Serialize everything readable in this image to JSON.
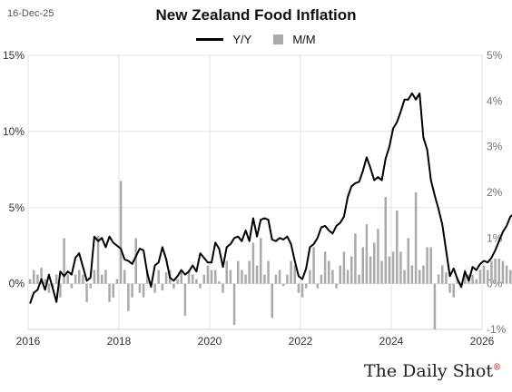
{
  "header": {
    "date": "16-Dec-25",
    "title": "New Zealand Food Inflation"
  },
  "legend": {
    "yy_label": "Y/Y",
    "mm_label": "M/M"
  },
  "brand": "The Daily Shot",
  "brand_mark": "®",
  "chart_data": {
    "type": "line",
    "title": "New Zealand Food Inflation",
    "x_ticks": [
      "2016",
      "2018",
      "2020",
      "2022",
      "2024",
      "2026"
    ],
    "y_left_ticks": [
      "15%",
      "10%",
      "5%",
      "0%"
    ],
    "y_right_ticks": [
      "5%",
      "4%",
      "3%",
      "2%",
      "1%",
      "0%",
      "-1%"
    ],
    "ylim_left": [
      -3,
      15
    ],
    "ylim_right": [
      -1,
      5
    ],
    "xlim": [
      2016.0,
      2026.0
    ],
    "grid": true,
    "legend_position": "top",
    "colors": {
      "line": "#000000",
      "bars": "#aaaaaa",
      "last_point": "#e02020"
    },
    "series": [
      {
        "name": "Y/Y",
        "axis": "left",
        "kind": "line",
        "start": "2016-01",
        "frequency": "monthly",
        "values": [
          -1.3,
          -0.6,
          -0.4,
          0.3,
          -0.4,
          0.6,
          -0.3,
          -1.2,
          0.8,
          0.5,
          0.8,
          0.6,
          1.7,
          2.0,
          1.1,
          0.2,
          0.4,
          3.1,
          2.8,
          3.0,
          2.4,
          3.1,
          2.7,
          2.5,
          2.3,
          1.6,
          1.5,
          1.3,
          1.8,
          2.3,
          2.2,
          0.7,
          -0.2,
          1.2,
          1.4,
          2.4,
          1.6,
          0.4,
          0.2,
          0.5,
          0.9,
          0.6,
          0.8,
          1.2,
          0.8,
          2.0,
          1.7,
          1.4,
          1.4,
          2.7,
          2.3,
          1.1,
          2.4,
          2.6,
          3.0,
          3.1,
          2.8,
          3.5,
          2.8,
          4.3,
          3.1,
          4.2,
          4.3,
          4.2,
          2.9,
          2.8,
          3.0,
          2.9,
          3.1,
          2.6,
          1.5,
          0.5,
          0.3,
          1.0,
          2.4,
          2.6,
          3.0,
          3.7,
          3.8,
          3.5,
          3.3,
          3.8,
          4.0,
          4.4,
          5.7,
          6.4,
          6.6,
          6.7,
          7.4,
          8.3,
          7.6,
          6.8,
          7.0,
          6.8,
          8.2,
          9.0,
          10.2,
          10.6,
          11.3,
          12.1,
          12.1,
          12.5,
          12.1,
          12.5,
          9.6,
          8.8,
          6.8,
          5.8,
          4.9,
          3.9,
          2.2,
          0.5,
          1.0,
          0.3,
          -0.2,
          0.8,
          0.2,
          1.1,
          0.9,
          1.3,
          1.5,
          1.4,
          1.7,
          2.2,
          2.8,
          3.4,
          3.8,
          4.4,
          4.6,
          4.9,
          4.9,
          4.4,
          4.1,
          4.7,
          4.4
        ]
      },
      {
        "name": "M/M",
        "axis": "right",
        "kind": "bar",
        "start": "2016-01",
        "frequency": "monthly",
        "values": [
          0.1,
          0.3,
          0.2,
          0.35,
          0.1,
          -0.2,
          -0.1,
          0.2,
          -0.3,
          1.0,
          0.2,
          -0.1,
          0.2,
          0.3,
          0.2,
          -0.4,
          -0.1,
          0.3,
          1.05,
          0.2,
          0.3,
          -0.4,
          -0.3,
          0.1,
          2.25,
          0.3,
          -0.6,
          -0.3,
          1.0,
          -0.2,
          -0.3,
          0.3,
          0.05,
          -0.2,
          0.3,
          -0.15,
          0.25,
          0.3,
          -0.1,
          0.1,
          0.3,
          -0.7,
          0.3,
          0.2,
          0.1,
          -0.1,
          0.2,
          0.4,
          0.3,
          0.3,
          0.05,
          -0.2,
          0.5,
          0.3,
          -0.9,
          0.5,
          0.3,
          0.2,
          0.5,
          0.9,
          0.4,
          1.0,
          0.2,
          0.5,
          -0.75,
          0.2,
          0.3,
          -0.05,
          0.2,
          0.5,
          0.4,
          -0.2,
          -0.3,
          -0.1,
          0.3,
          0.8,
          -0.1,
          0.2,
          0.7,
          0.5,
          0.3,
          -0.1,
          0.4,
          0.7,
          0.3,
          0.6,
          1.1,
          0.2,
          0.8,
          1.3,
          0.6,
          0.9,
          1.2,
          0.5,
          1.9,
          0.6,
          0.7,
          1.6,
          0.7,
          0.3,
          1.0,
          0.4,
          2.0,
          0.3,
          0.4,
          0.8,
          0.8,
          -1.0,
          0.2,
          0.4,
          0.25,
          -0.2,
          -0.3,
          0.1,
          -0.1,
          0.3,
          0.2,
          0.2,
          0.1,
          0.3,
          0.4,
          0.3,
          0.5,
          0.55,
          0.55,
          0.5,
          0.4,
          0.3,
          0.4,
          -0.1,
          0.5,
          0.1,
          0.2,
          0.5
        ]
      }
    ],
    "last_point_marker": true
  }
}
